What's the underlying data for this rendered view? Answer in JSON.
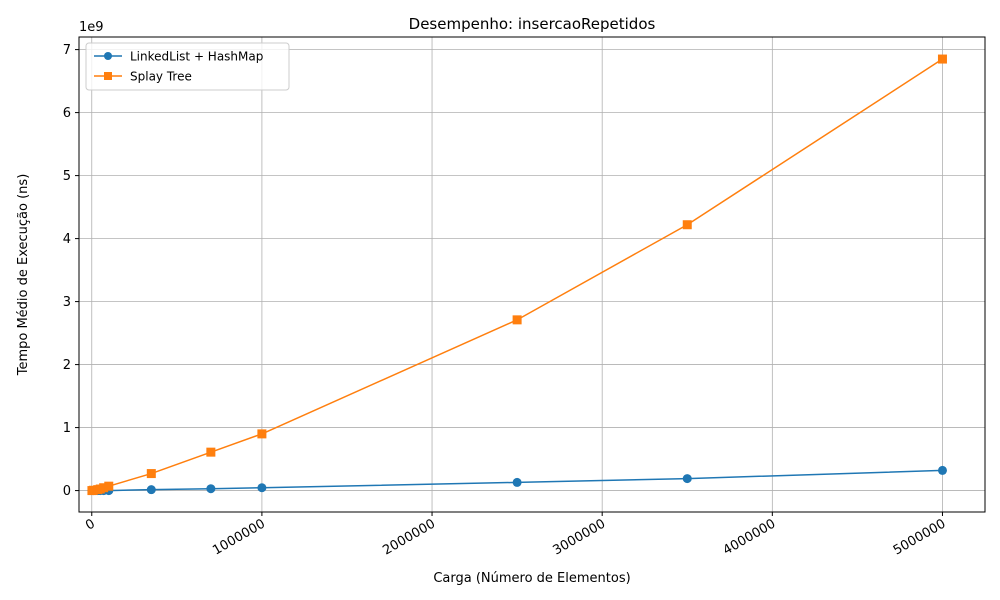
{
  "chart_data": {
    "type": "line",
    "title": "Desempenho: insercaoRepetidos",
    "xlabel": "Carga (Número de Elementos)",
    "ylabel": "Tempo Médio de Execução (ns)",
    "y_offset_label": "1e9",
    "xlim": [
      -75000,
      5250000
    ],
    "ylim": [
      -340000000,
      7200000000
    ],
    "x_ticks": [
      0,
      1000000,
      2000000,
      3000000,
      4000000,
      5000000
    ],
    "x_tick_labels": [
      "0",
      "1000000",
      "2000000",
      "3000000",
      "4000000",
      "5000000"
    ],
    "y_ticks": [
      0,
      1000000000,
      2000000000,
      3000000000,
      4000000000,
      5000000000,
      6000000000,
      7000000000
    ],
    "y_tick_labels": [
      "0",
      "1",
      "2",
      "3",
      "4",
      "5",
      "6",
      "7"
    ],
    "grid": true,
    "legend_position": "top-left",
    "series": [
      {
        "name": "LinkedList + HashMap",
        "color": "#1f77b4",
        "marker": "circle",
        "x": [
          1000,
          10000,
          35000,
          50000,
          70000,
          100000,
          350000,
          700000,
          1000000,
          2500000,
          3500000,
          5000000
        ],
        "y": [
          0,
          0,
          0,
          0,
          0,
          0,
          15000000,
          30000000,
          45000000,
          130000000,
          190000000,
          320000000
        ]
      },
      {
        "name": "Splay Tree",
        "color": "#ff7f0e",
        "marker": "square",
        "x": [
          1000,
          10000,
          35000,
          50000,
          70000,
          100000,
          350000,
          700000,
          1000000,
          2500000,
          3500000,
          5000000
        ],
        "y": [
          0,
          5000000,
          15000000,
          25000000,
          45000000,
          70000000,
          270000000,
          610000000,
          900000000,
          2710000000,
          4220000000,
          6850000000
        ]
      }
    ]
  }
}
